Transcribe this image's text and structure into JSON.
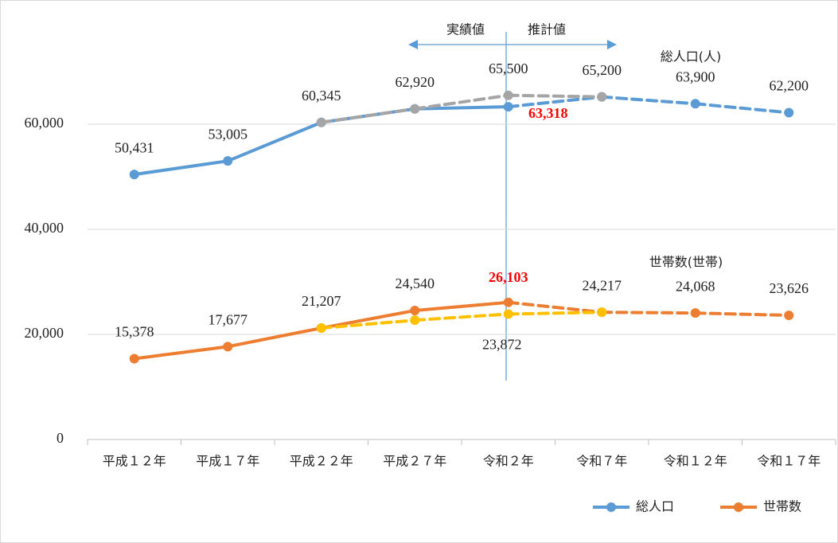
{
  "chart_data": {
    "type": "line",
    "categories": [
      "平成１２年",
      "平成１７年",
      "平成２２年",
      "平成２７年",
      "令和２年",
      "令和７年",
      "令和１２年",
      "令和１７年"
    ],
    "series": [
      {
        "name": "総人口",
        "color": "#5b9bd5",
        "dashed_from": 4,
        "values": [
          50431,
          53005,
          60345,
          62920,
          63318,
          65200,
          63900,
          62200
        ],
        "value_labels": [
          "50,431",
          "53,005",
          "60,345",
          "62,920",
          "63,318",
          "65,200",
          "63,900",
          "62,200"
        ]
      },
      {
        "name": "世帯数",
        "color": "#ed7d31",
        "dashed_from": 4,
        "values": [
          15378,
          17677,
          21207,
          24540,
          26103,
          24217,
          24068,
          23626
        ],
        "value_labels": [
          "15,378",
          "17,677",
          "21,207",
          "24,540",
          "26,103",
          "24,217",
          "24,068",
          "23,626"
        ]
      },
      {
        "color": "#a5a5a5",
        "dashed_from": 0,
        "values": [
          null,
          null,
          60345,
          62920,
          65500,
          65200,
          null,
          null
        ],
        "value_labels": [
          null,
          null,
          null,
          null,
          "65,500",
          null,
          null,
          null
        ]
      },
      {
        "color": "#ffc000",
        "dashed_from": 0,
        "values": [
          null,
          null,
          21207,
          22700,
          23872,
          24217,
          null,
          null
        ],
        "value_labels": [
          null,
          null,
          null,
          null,
          "23,872",
          null,
          null,
          null
        ]
      }
    ],
    "ylim": [
      0,
      80000
    ],
    "yticks": [
      0,
      {
        "value": 20000,
        "label": "20,000"
      },
      {
        "value": 40000,
        "label": "40,000"
      },
      {
        "value": 60000,
        "label": "60,000"
      }
    ],
    "grid": true,
    "annotations": [
      "実績値",
      "推計値",
      "総人口(人)",
      "世帯数(世帯)"
    ],
    "legend": "bottom-right"
  }
}
